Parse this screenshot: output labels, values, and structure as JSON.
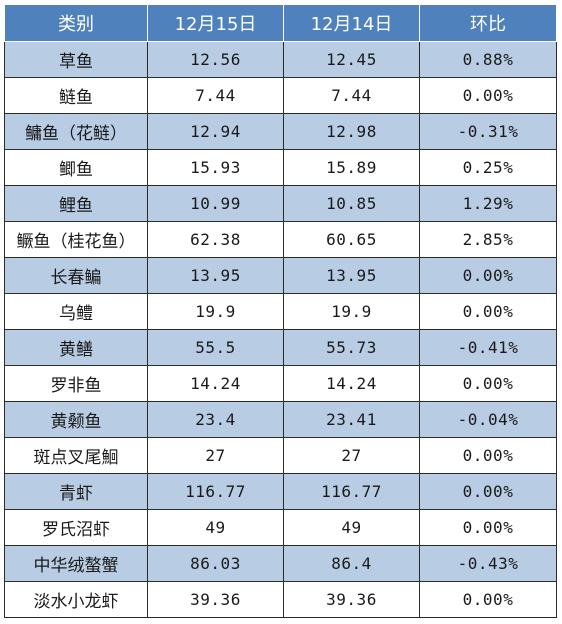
{
  "header": {
    "category": "类别",
    "dec15": "12月15日",
    "dec14": "12月14日",
    "change": "环比"
  },
  "rows": [
    {
      "name": "草鱼",
      "dec15": "12.56",
      "dec14": "12.45",
      "change": "0.88%"
    },
    {
      "name": "鲢鱼",
      "dec15": "7.44",
      "dec14": "7.44",
      "change": "0.00%"
    },
    {
      "name": "鳙鱼（花鲢）",
      "dec15": "12.94",
      "dec14": "12.98",
      "change": "-0.31%"
    },
    {
      "name": "鲫鱼",
      "dec15": "15.93",
      "dec14": "15.89",
      "change": "0.25%"
    },
    {
      "name": "鲤鱼",
      "dec15": "10.99",
      "dec14": "10.85",
      "change": "1.29%"
    },
    {
      "name": "鳜鱼（桂花鱼）",
      "dec15": "62.38",
      "dec14": "60.65",
      "change": "2.85%"
    },
    {
      "name": "长春鳊",
      "dec15": "13.95",
      "dec14": "13.95",
      "change": "0.00%"
    },
    {
      "name": "乌鳢",
      "dec15": "19.9",
      "dec14": "19.9",
      "change": "0.00%"
    },
    {
      "name": "黄鳝",
      "dec15": "55.5",
      "dec14": "55.73",
      "change": "-0.41%"
    },
    {
      "name": "罗非鱼",
      "dec15": "14.24",
      "dec14": "14.24",
      "change": "0.00%"
    },
    {
      "name": "黄颡鱼",
      "dec15": "23.4",
      "dec14": "23.41",
      "change": "-0.04%"
    },
    {
      "name": "斑点叉尾鮰",
      "dec15": "27",
      "dec14": "27",
      "change": "0.00%"
    },
    {
      "name": "青虾",
      "dec15": "116.77",
      "dec14": "116.77",
      "change": "0.00%"
    },
    {
      "name": "罗氏沼虾",
      "dec15": "49",
      "dec14": "49",
      "change": "0.00%"
    },
    {
      "name": "中华绒螯蟹",
      "dec15": "86.03",
      "dec14": "86.4",
      "change": "-0.43%"
    },
    {
      "name": "淡水小龙虾",
      "dec15": "39.36",
      "dec14": "39.36",
      "change": "0.00%"
    }
  ],
  "colors": {
    "header_bg": "#4f81bd",
    "band_bg": "#b8cce4",
    "plain_bg": "#ffffff"
  }
}
